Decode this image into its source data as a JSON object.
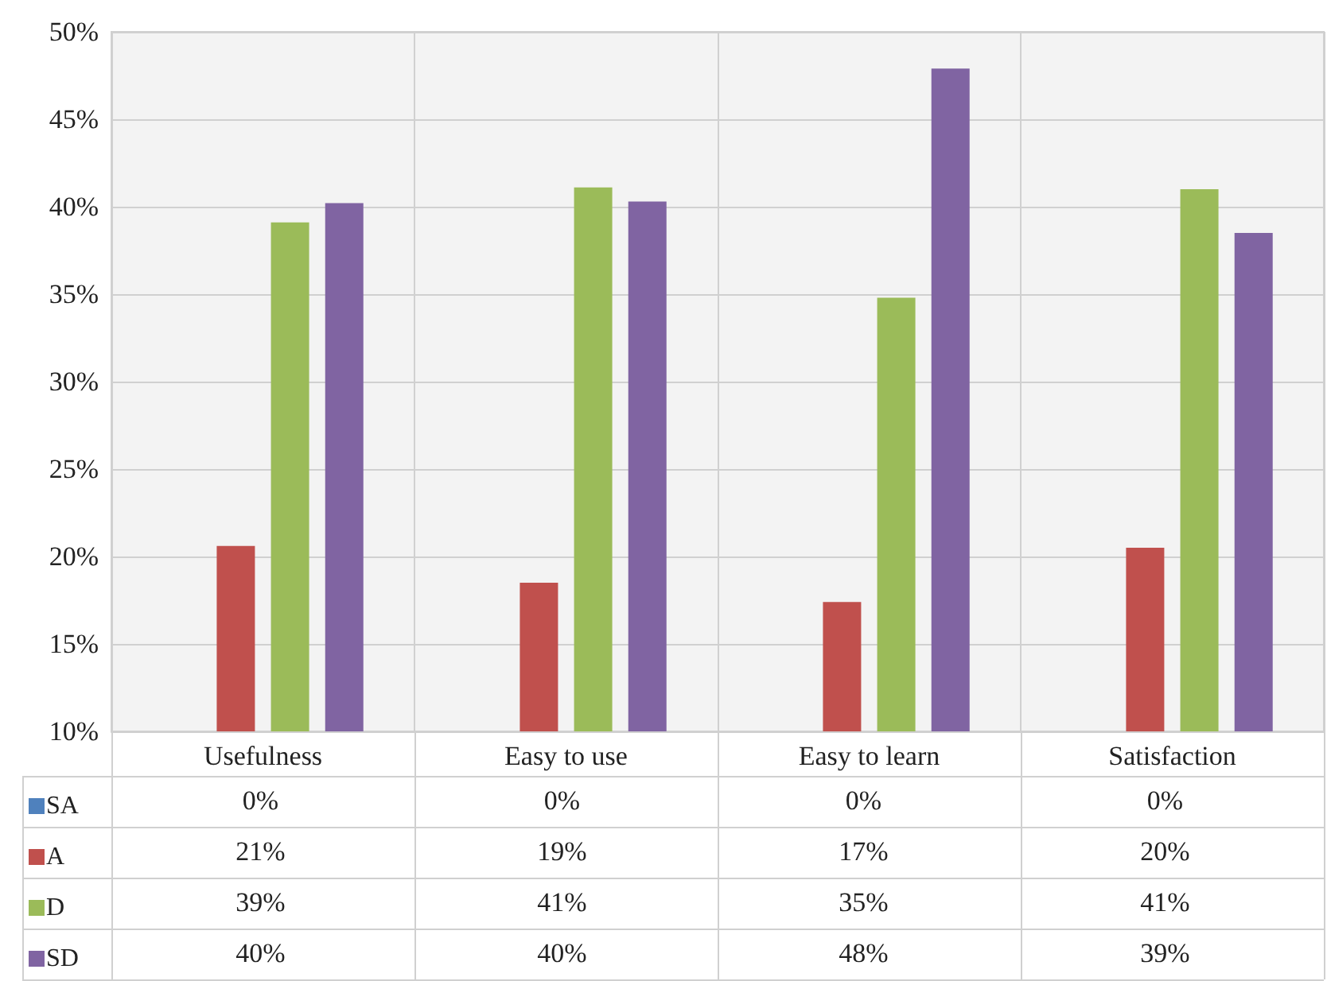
{
  "chart_data": {
    "type": "bar",
    "categories": [
      "Usefulness",
      "Easy to use",
      "Easy to learn",
      "Satisfaction"
    ],
    "series": [
      {
        "name": "SA",
        "color": "#4f81bd",
        "values": [
          null,
          null,
          null,
          null
        ],
        "value_labels": [
          "0%",
          "0%",
          "0%",
          "0%"
        ]
      },
      {
        "name": "A",
        "color": "#c0504d",
        "values": [
          20.6,
          18.5,
          17.4,
          20.5
        ],
        "value_labels": [
          "21%",
          "19%",
          "17%",
          "20%"
        ]
      },
      {
        "name": "D",
        "color": "#9bbb59",
        "values": [
          39.1,
          41.1,
          34.8,
          41.0
        ],
        "value_labels": [
          "39%",
          "41%",
          "35%",
          "41%"
        ]
      },
      {
        "name": "SD",
        "color": "#8064a2",
        "values": [
          40.2,
          40.3,
          47.9,
          38.5
        ],
        "value_labels": [
          "40%",
          "40%",
          "48%",
          "39%"
        ]
      }
    ],
    "ylim": [
      10,
      50
    ],
    "yticks": [
      {
        "value": 10,
        "label": "10%"
      },
      {
        "value": 15,
        "label": "15%"
      },
      {
        "value": 20,
        "label": "20%"
      },
      {
        "value": 25,
        "label": "25%"
      },
      {
        "value": 30,
        "label": "30%"
      },
      {
        "value": 35,
        "label": "35%"
      },
      {
        "value": 40,
        "label": "40%"
      },
      {
        "value": 45,
        "label": "45%"
      },
      {
        "value": 50,
        "label": "50%"
      }
    ],
    "grid": true,
    "legend": "bottom left"
  }
}
